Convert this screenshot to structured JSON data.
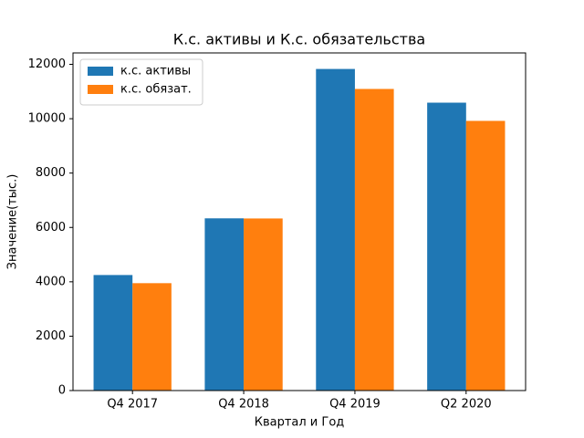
{
  "chart_data": {
    "type": "bar",
    "title": "К.с. активы и К.с. обязательства",
    "x_label": "Квартал и Год",
    "y_label": "Значение(тыс.)",
    "categories": [
      "Q4 2017",
      "Q4 2018",
      "Q4 2019",
      "Q2 2020"
    ],
    "series": [
      {
        "name": "к.с. активы",
        "color": "#1f77b4",
        "values": [
          4250,
          6335,
          11830,
          10590
        ]
      },
      {
        "name": "к.с. обязат.",
        "color": "#ff7f0e",
        "values": [
          3950,
          6330,
          11095,
          9920
        ]
      }
    ],
    "ylim": [
      0,
      12420
    ],
    "yticks": [
      0,
      2000,
      4000,
      6000,
      8000,
      10000,
      12000
    ],
    "legend": "upper left",
    "grid": false
  }
}
